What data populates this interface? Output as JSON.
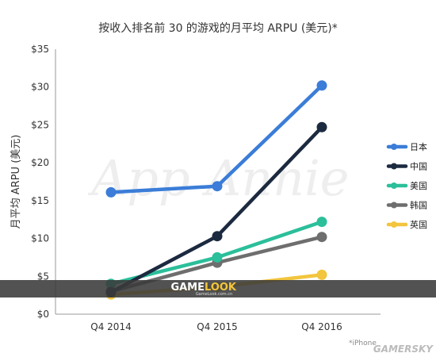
{
  "chart_data": {
    "type": "line",
    "title": "按收入排名前 30 的游戏的月平均 ARPU (美元)*",
    "ylabel": "月平均 ARPU (美元)",
    "xlabel": "",
    "categories": [
      "Q4 2014",
      "Q4 2015",
      "Q4 2016"
    ],
    "ylim": [
      0,
      35
    ],
    "yticks": [
      "$0",
      "$5",
      "$10",
      "$15",
      "$20",
      "$25",
      "$30",
      "$35"
    ],
    "grid": false,
    "legend_position": "right",
    "series": [
      {
        "name": "日本",
        "color": "#3b7dd8",
        "values": [
          16.1,
          16.9,
          30.2
        ]
      },
      {
        "name": "中国",
        "color": "#1c2a40",
        "values": [
          2.9,
          10.3,
          24.7
        ]
      },
      {
        "name": "美国",
        "color": "#2bbf9a",
        "values": [
          4.0,
          7.5,
          12.2
        ]
      },
      {
        "name": "韩国",
        "color": "#6e6e6e",
        "values": [
          3.0,
          6.8,
          10.2
        ]
      },
      {
        "name": "英国",
        "color": "#f2c53d",
        "values": [
          2.6,
          3.6,
          5.2
        ]
      }
    ],
    "footnote": "*iPhone"
  },
  "watermarks": {
    "background": "App Annie",
    "banner_left": "GAME",
    "banner_right": "LOOK",
    "banner_sub": "GameLook.com.cn",
    "corner": "GAMERSKY"
  }
}
